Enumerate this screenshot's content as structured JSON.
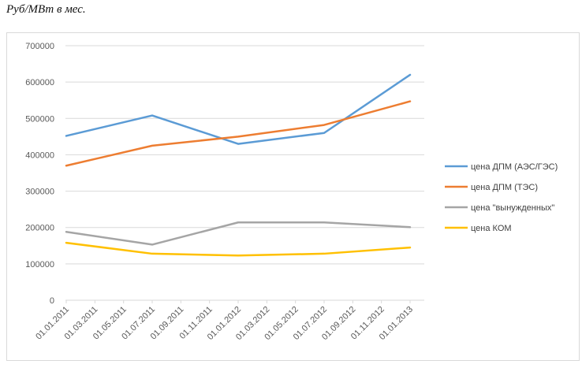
{
  "unit_caption": "Руб/МВт в мес.",
  "chart_data": {
    "type": "line",
    "x": [
      "01.01.2011",
      "01.07.2011",
      "01.01.2012",
      "01.07.2012",
      "01.01.2013"
    ],
    "x_tick_labels": [
      "01.01.2011",
      "01.03.2011",
      "01.05.2011",
      "01.07.2011",
      "01.09.2011",
      "01.11.2011",
      "01.01.2012",
      "01.03.2012",
      "01.05.2012",
      "01.07.2012",
      "01.09.2012",
      "01.11.2012",
      "01.01.2013"
    ],
    "ylim": [
      0,
      700000
    ],
    "y_ticks": [
      "0",
      "100000",
      "200000",
      "300000",
      "400000",
      "500000",
      "600000",
      "700000"
    ],
    "grid": true,
    "legend_position": "right",
    "series": [
      {
        "name": "цена ДПМ (АЭС/ГЭС)",
        "color": "#5b9bd5",
        "values": [
          452000,
          508000,
          430000,
          460000,
          620000
        ]
      },
      {
        "name": "цена ДПМ (ТЭС)",
        "color": "#ed7d31",
        "values": [
          370000,
          425000,
          450000,
          482000,
          547000
        ]
      },
      {
        "name": "цена \"вынужденных\"",
        "color": "#a5a5a5",
        "values": [
          188000,
          153000,
          214000,
          214000,
          201000
        ]
      },
      {
        "name": "цена КОМ",
        "color": "#ffc000",
        "values": [
          158000,
          128000,
          123000,
          128000,
          145000
        ]
      }
    ]
  }
}
